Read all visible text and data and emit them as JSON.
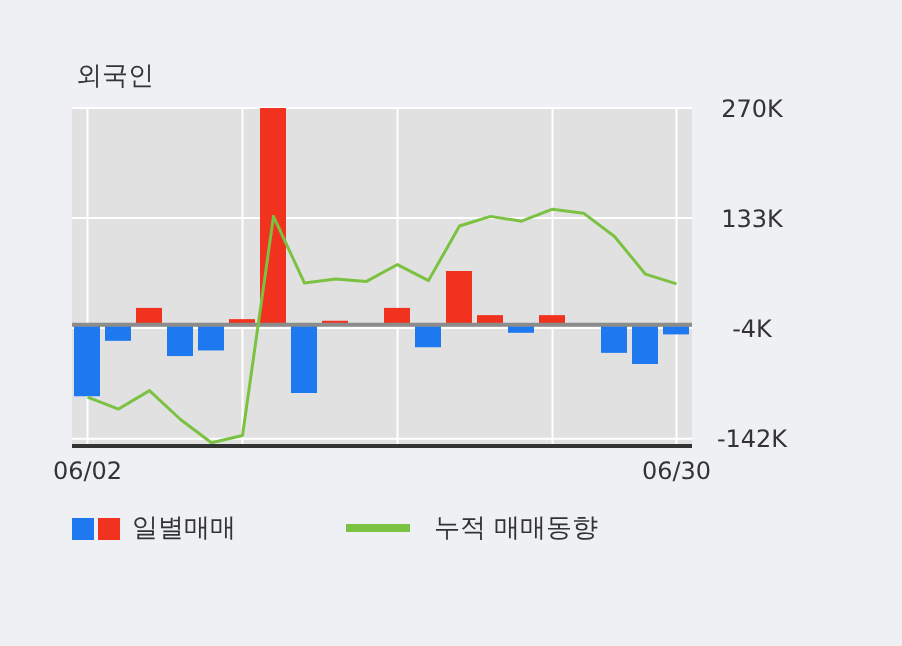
{
  "chart_data": {
    "type": "bar",
    "title": "외국인",
    "categories": [
      "06/02",
      null,
      null,
      null,
      null,
      null,
      null,
      null,
      null,
      null,
      null,
      null,
      null,
      null,
      null,
      null,
      null,
      null,
      null,
      "06/30"
    ],
    "series": [
      {
        "name": "일별매매",
        "colors": [
          "#1e78f0",
          "#1e78f0",
          "#f0321e",
          "#1e78f0",
          "#1e78f0",
          "#f0321e",
          "#f0321e",
          "#1e78f0",
          "#f0321e",
          "#f0321e",
          "#f0321e",
          "#1e78f0",
          "#f0321e",
          "#f0321e",
          "#1e78f0",
          "#f0321e",
          "#f0321e",
          "#1e78f0",
          "#1e78f0",
          "#1e78f0"
        ],
        "values": [
          -89,
          -20,
          21,
          -39,
          -32,
          7,
          270,
          -85,
          5,
          0,
          21,
          -28,
          67,
          12,
          -10,
          12,
          0,
          -35,
          -49,
          -12
        ]
      },
      {
        "name": "누적 매매동향",
        "type": "line",
        "color": "#7cc242",
        "values": [
          -90,
          -105,
          -82,
          -118,
          -147,
          -138,
          135,
          52,
          57,
          54,
          75,
          55,
          123,
          135,
          129,
          144,
          139,
          110,
          63,
          51
        ]
      }
    ],
    "ylim": [
      -151,
      270
    ],
    "yticks": [
      {
        "value": 270,
        "label": "270K"
      },
      {
        "value": 133,
        "label": "133K"
      },
      {
        "value": -4,
        "label": "-4K"
      },
      {
        "value": -142,
        "label": "-142K"
      }
    ],
    "ref_lines": [
      {
        "axis": "y",
        "value": 0,
        "color": "#8c8c8c"
      }
    ],
    "grid": true,
    "legend": "bottom"
  }
}
